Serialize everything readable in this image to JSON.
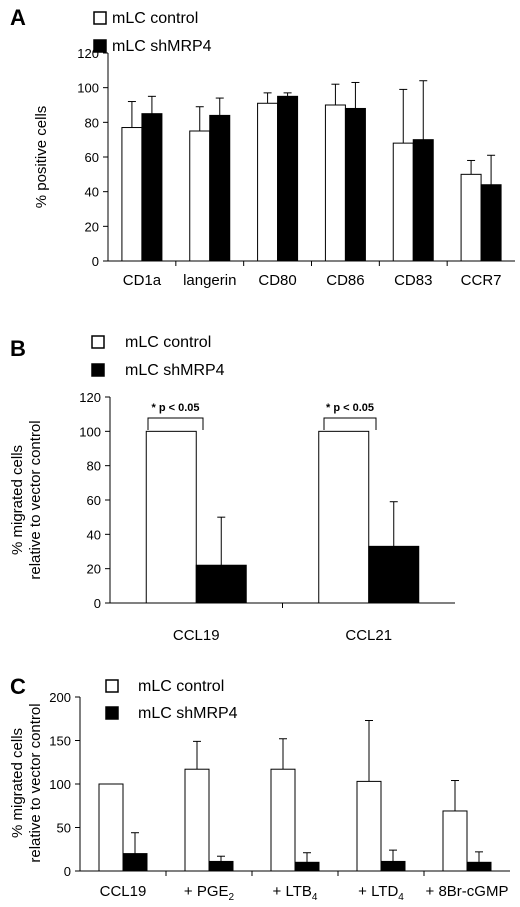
{
  "chart_data": [
    {
      "panel": "A",
      "type": "bar",
      "categories": [
        "CD1a",
        "langerin",
        "CD80",
        "CD86",
        "CD83",
        "CCR7"
      ],
      "series": [
        {
          "name": "mLC control",
          "fill": "#ffffff",
          "values": [
            77,
            75,
            91,
            90,
            68,
            50
          ],
          "errors": [
            15,
            14,
            6,
            12,
            31,
            8
          ]
        },
        {
          "name": "mLC shMRP4",
          "fill": "#000000",
          "values": [
            85,
            84,
            95,
            88,
            70,
            44
          ],
          "errors": [
            10,
            10,
            2,
            15,
            34,
            17
          ]
        }
      ],
      "ylabel": "% positive cells",
      "ylim": [
        0,
        120
      ],
      "yticks": [
        "0",
        "20",
        "40",
        "60",
        "80",
        "100",
        "120"
      ],
      "legend": "top-left"
    },
    {
      "panel": "B",
      "type": "bar",
      "categories": [
        "CCL19",
        "CCL21"
      ],
      "series": [
        {
          "name": "mLC control",
          "fill": "#ffffff",
          "values": [
            100,
            100
          ],
          "errors": [
            0,
            0
          ]
        },
        {
          "name": "mLC shMRP4",
          "fill": "#000000",
          "values": [
            22,
            33
          ],
          "errors": [
            28,
            26
          ]
        }
      ],
      "ylabel": [
        "% migrated cells",
        "relative to vector control"
      ],
      "ylim": [
        0,
        120
      ],
      "yticks": [
        "0",
        "20",
        "40",
        "60",
        "80",
        "100",
        "120"
      ],
      "annotations": [
        "* p < 0.05",
        "* p < 0.05"
      ],
      "legend": "top-left"
    },
    {
      "panel": "C",
      "type": "bar",
      "categories": [
        {
          "base": "CCL19",
          "sub": ""
        },
        {
          "base": "+ PGE",
          "sub": "2"
        },
        {
          "base": "+ LTB",
          "sub": "4"
        },
        {
          "base": "+ LTD",
          "sub": "4"
        },
        {
          "base": "+ 8Br-cGMP",
          "sub": ""
        }
      ],
      "series": [
        {
          "name": "mLC control",
          "fill": "#ffffff",
          "values": [
            100,
            117,
            117,
            103,
            69
          ],
          "errors": [
            0,
            32,
            35,
            70,
            35
          ]
        },
        {
          "name": "mLC shMRP4",
          "fill": "#000000",
          "values": [
            20,
            11,
            10,
            11,
            10
          ],
          "errors": [
            24,
            6,
            11,
            13,
            12
          ]
        }
      ],
      "ylabel": [
        "% migrated cells",
        "relative to vector control"
      ],
      "ylim": [
        0,
        200
      ],
      "yticks": [
        "0",
        "50",
        "100",
        "150",
        "200"
      ],
      "legend": "top-left"
    }
  ]
}
